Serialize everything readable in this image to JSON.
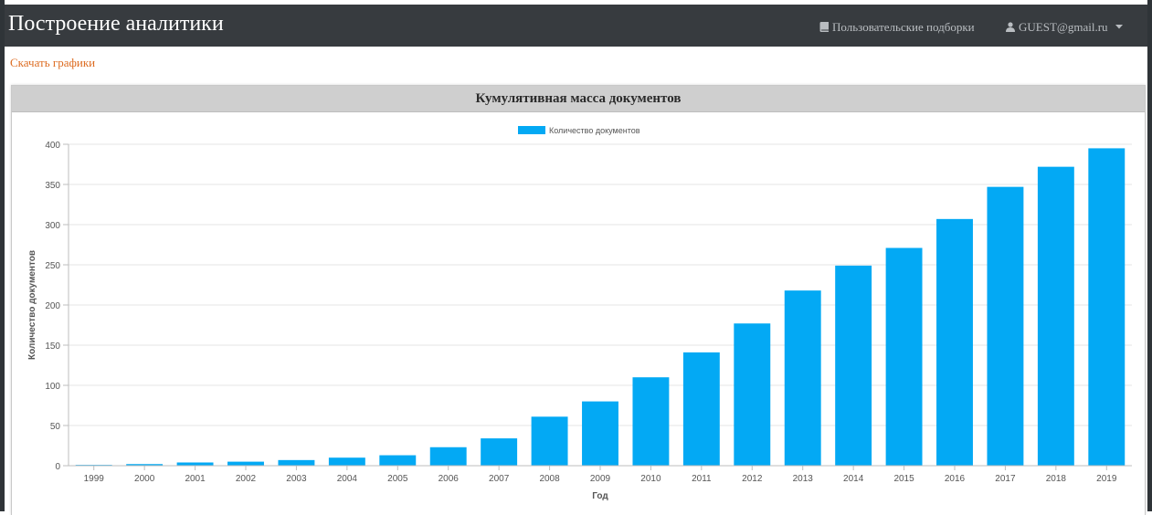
{
  "navbar": {
    "title": "Построение аналитики",
    "collections_label": "Пользовательские подборки",
    "user_label": "GUEST@gmail.ru"
  },
  "links": {
    "download_charts": "Скачать графики"
  },
  "panel": {
    "title": "Кумулятивная масса документов"
  },
  "colors": {
    "navbar_bg": "#373b3f",
    "link": "#dd6b20",
    "bar": "#03a9f4",
    "panel_header_bg": "#cfcfcf"
  },
  "chart_data": {
    "type": "bar",
    "title": "",
    "xlabel": "Год",
    "ylabel": "Количество документов",
    "categories": [
      "1999",
      "2000",
      "2001",
      "2002",
      "2003",
      "2004",
      "2005",
      "2006",
      "2007",
      "2008",
      "2009",
      "2010",
      "2011",
      "2012",
      "2013",
      "2014",
      "2015",
      "2016",
      "2017",
      "2018",
      "2019"
    ],
    "series": [
      {
        "name": "Количество документов",
        "color": "#03a9f4",
        "values": [
          1,
          2,
          4,
          5,
          7,
          10,
          13,
          23,
          34,
          61,
          80,
          110,
          141,
          177,
          218,
          249,
          271,
          307,
          347,
          372,
          395
        ]
      }
    ],
    "ylim": [
      0,
      400
    ],
    "yticks": [
      0,
      50,
      100,
      150,
      200,
      250,
      300,
      350,
      400
    ],
    "grid": true,
    "legend": "top-center"
  }
}
